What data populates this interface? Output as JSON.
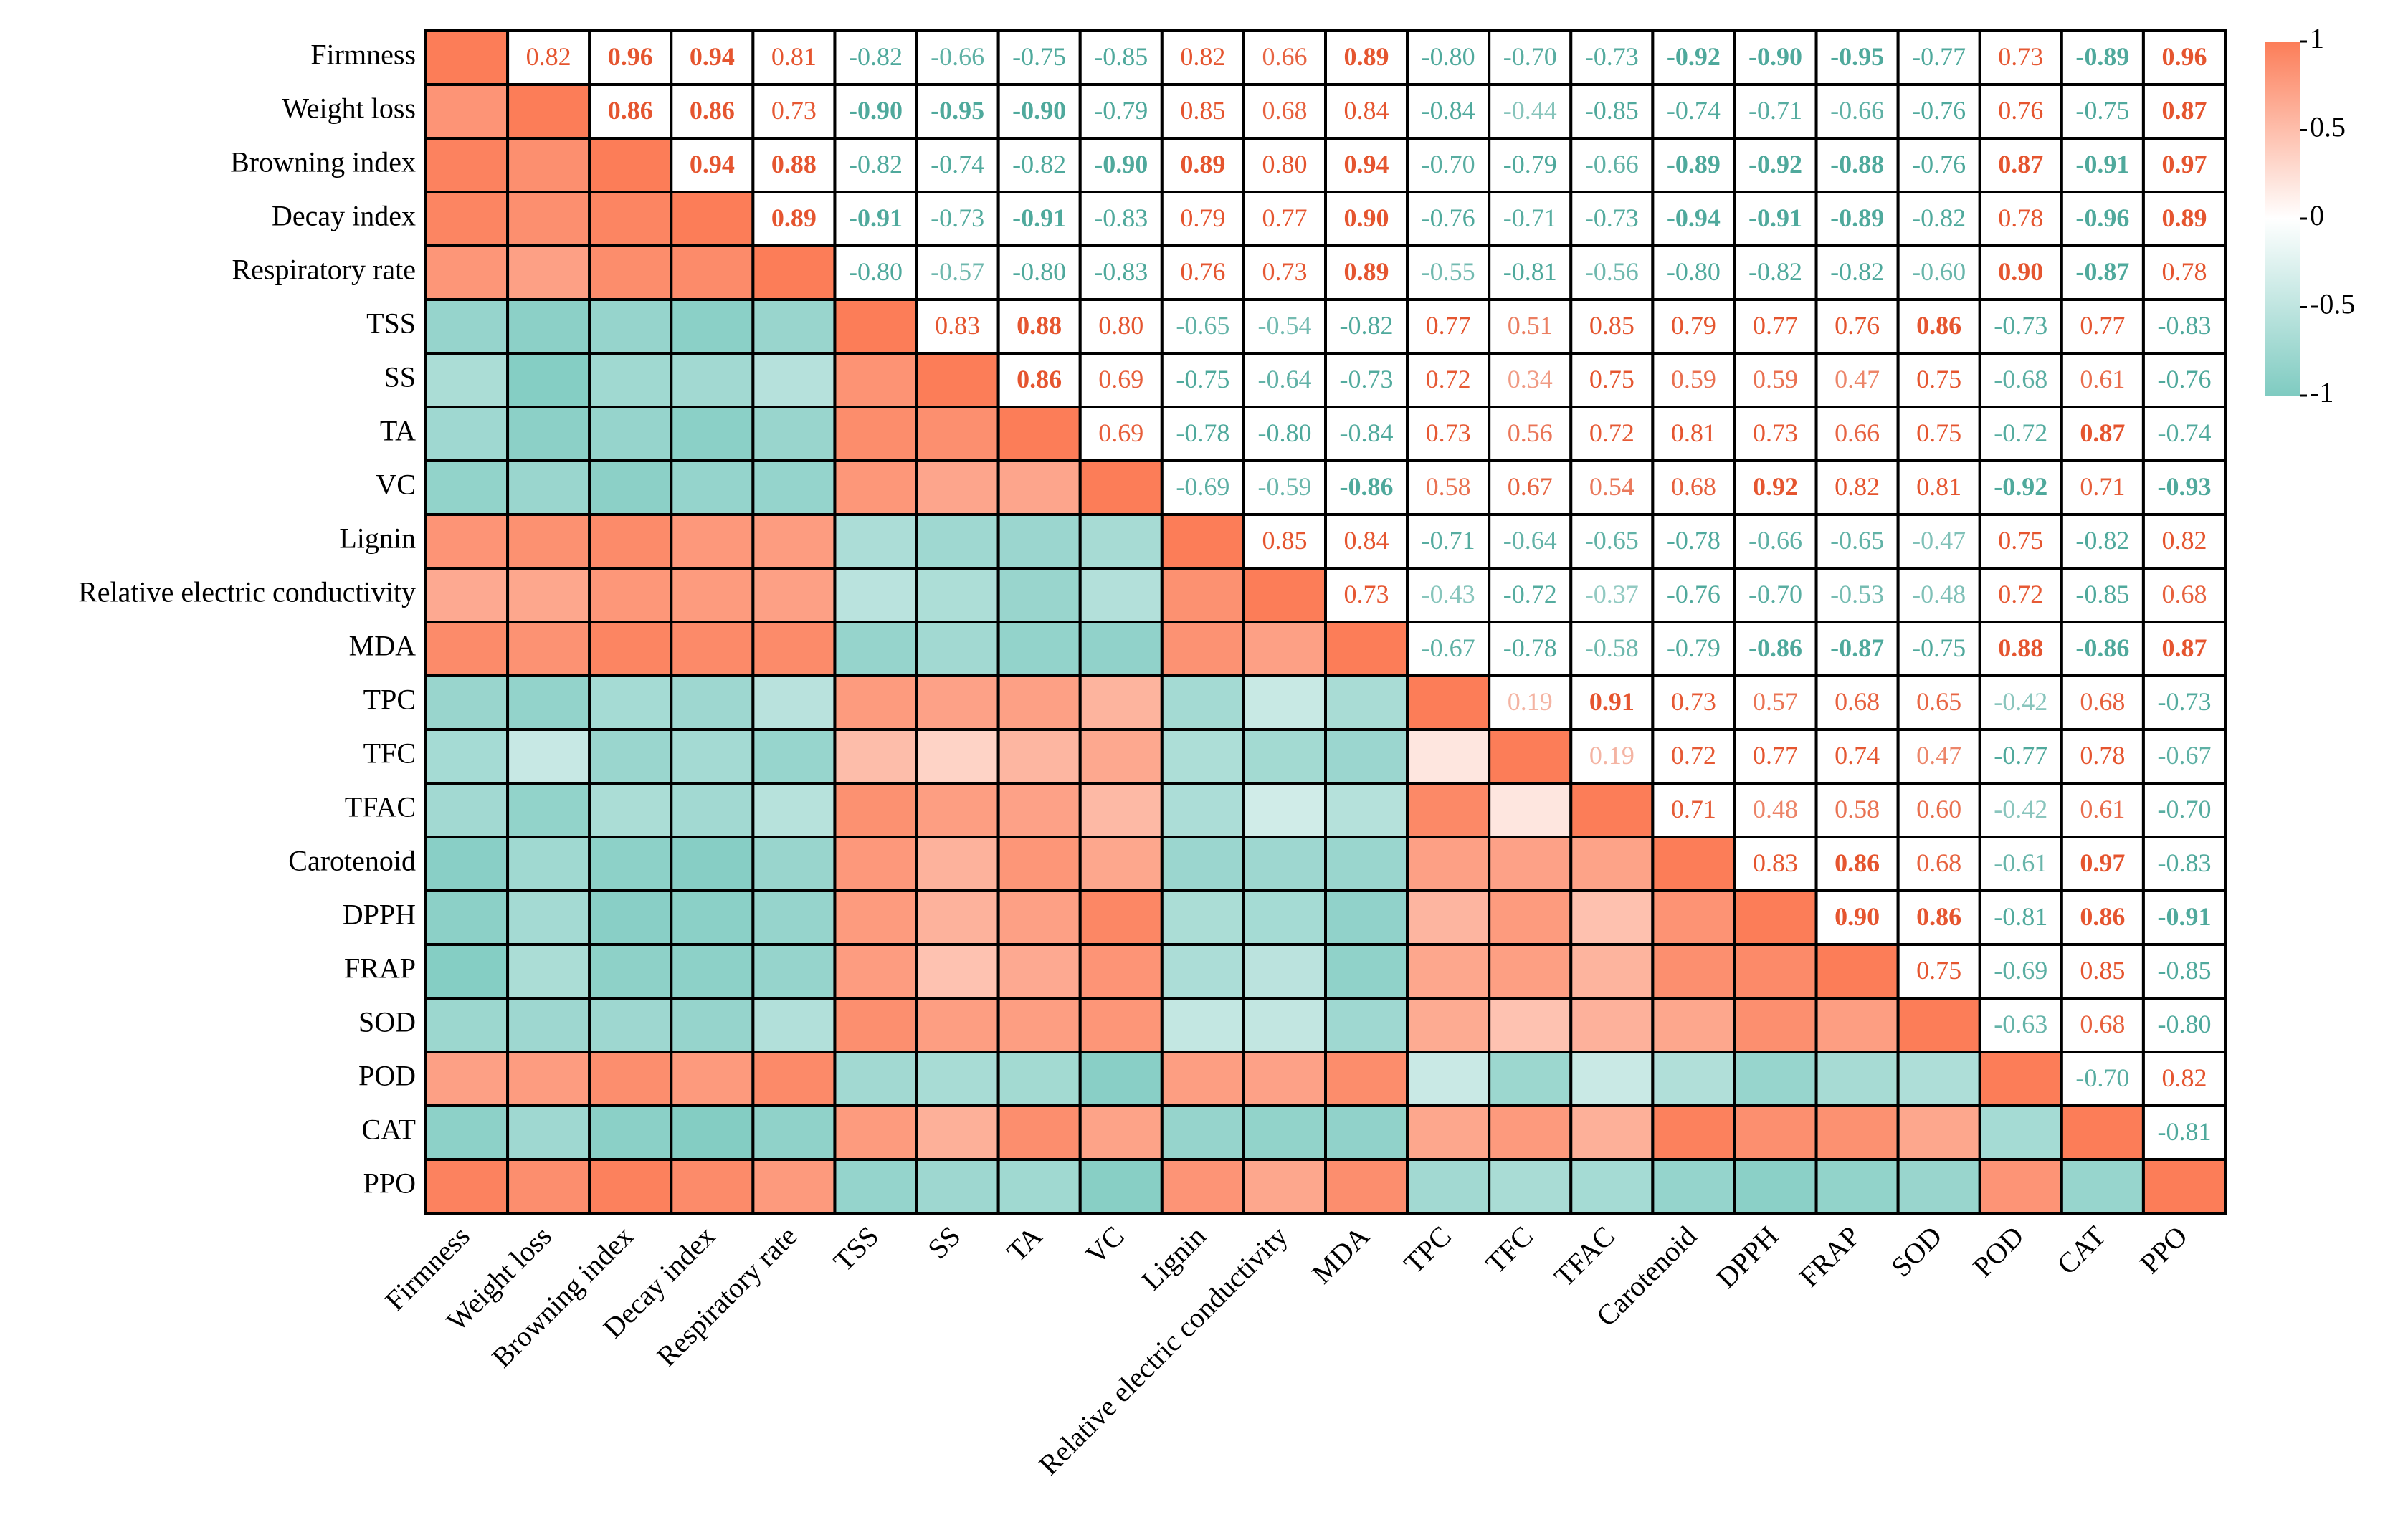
{
  "chart_data": {
    "type": "heatmap",
    "labels": [
      "Firmness",
      "Weight loss",
      "Browning index",
      "Decay index",
      "Respiratory rate",
      "TSS",
      "SS",
      "TA",
      "VC",
      "Lignin",
      "Relative electric conductivity",
      "MDA",
      "TPC",
      "TFC",
      "TFAC",
      "Carotenoid",
      "DPPH",
      "FRAP",
      "SOD",
      "POD",
      "CAT",
      "PPO"
    ],
    "values": [
      [
        1,
        0.82,
        0.96,
        0.94,
        0.81,
        -0.82,
        -0.66,
        -0.75,
        -0.85,
        0.82,
        0.66,
        0.89,
        -0.8,
        -0.7,
        -0.73,
        -0.92,
        -0.9,
        -0.95,
        -0.77,
        0.73,
        -0.89,
        0.96
      ],
      [
        null,
        1,
        0.86,
        0.86,
        0.73,
        -0.9,
        -0.95,
        -0.9,
        -0.79,
        0.85,
        0.68,
        0.84,
        -0.84,
        -0.44,
        -0.85,
        -0.74,
        -0.71,
        -0.66,
        -0.76,
        0.76,
        -0.75,
        0.87
      ],
      [
        null,
        null,
        1,
        0.94,
        0.88,
        -0.82,
        -0.74,
        -0.82,
        -0.9,
        0.89,
        0.8,
        0.94,
        -0.7,
        -0.79,
        -0.66,
        -0.89,
        -0.92,
        -0.88,
        -0.76,
        0.87,
        -0.91,
        0.97
      ],
      [
        null,
        null,
        null,
        1,
        0.89,
        -0.91,
        -0.73,
        -0.91,
        -0.83,
        0.79,
        0.77,
        0.9,
        -0.76,
        -0.71,
        -0.73,
        -0.94,
        -0.91,
        -0.89,
        -0.82,
        0.78,
        -0.96,
        0.89
      ],
      [
        null,
        null,
        null,
        null,
        1,
        -0.8,
        -0.57,
        -0.8,
        -0.83,
        0.76,
        0.73,
        0.89,
        -0.55,
        -0.81,
        -0.56,
        -0.8,
        -0.82,
        -0.82,
        -0.6,
        0.9,
        -0.87,
        0.78
      ],
      [
        null,
        null,
        null,
        null,
        null,
        1,
        0.83,
        0.88,
        0.8,
        -0.65,
        -0.54,
        -0.82,
        0.77,
        0.51,
        0.85,
        0.79,
        0.77,
        0.76,
        0.86,
        -0.73,
        0.77,
        -0.83
      ],
      [
        null,
        null,
        null,
        null,
        null,
        null,
        1,
        0.86,
        0.69,
        -0.75,
        -0.64,
        -0.73,
        0.72,
        0.34,
        0.75,
        0.59,
        0.59,
        0.47,
        0.75,
        -0.68,
        0.61,
        -0.76
      ],
      [
        null,
        null,
        null,
        null,
        null,
        null,
        null,
        1,
        0.69,
        -0.78,
        -0.8,
        -0.84,
        0.73,
        0.56,
        0.72,
        0.81,
        0.73,
        0.66,
        0.75,
        -0.72,
        0.87,
        -0.74
      ],
      [
        null,
        null,
        null,
        null,
        null,
        null,
        null,
        null,
        1,
        -0.69,
        -0.59,
        -0.86,
        0.58,
        0.67,
        0.54,
        0.68,
        0.92,
        0.82,
        0.81,
        -0.92,
        0.71,
        -0.93
      ],
      [
        null,
        null,
        null,
        null,
        null,
        null,
        null,
        null,
        null,
        1,
        0.85,
        0.84,
        -0.71,
        -0.64,
        -0.65,
        -0.78,
        -0.66,
        -0.65,
        -0.47,
        0.75,
        -0.82,
        0.82
      ],
      [
        null,
        null,
        null,
        null,
        null,
        null,
        null,
        null,
        null,
        null,
        1,
        0.73,
        -0.43,
        -0.72,
        -0.37,
        -0.76,
        -0.7,
        -0.53,
        -0.48,
        0.72,
        -0.85,
        0.68
      ],
      [
        null,
        null,
        null,
        null,
        null,
        null,
        null,
        null,
        null,
        null,
        null,
        1,
        -0.67,
        -0.78,
        -0.58,
        -0.79,
        -0.86,
        -0.87,
        -0.75,
        0.88,
        -0.86,
        0.87
      ],
      [
        null,
        null,
        null,
        null,
        null,
        null,
        null,
        null,
        null,
        null,
        null,
        null,
        1,
        0.19,
        0.91,
        0.73,
        0.57,
        0.68,
        0.65,
        -0.42,
        0.68,
        -0.73
      ],
      [
        null,
        null,
        null,
        null,
        null,
        null,
        null,
        null,
        null,
        null,
        null,
        null,
        null,
        1,
        0.19,
        0.72,
        0.77,
        0.74,
        0.47,
        -0.77,
        0.78,
        -0.67
      ],
      [
        null,
        null,
        null,
        null,
        null,
        null,
        null,
        null,
        null,
        null,
        null,
        null,
        null,
        null,
        1,
        0.71,
        0.48,
        0.58,
        0.6,
        -0.42,
        0.61,
        -0.7
      ],
      [
        null,
        null,
        null,
        null,
        null,
        null,
        null,
        null,
        null,
        null,
        null,
        null,
        null,
        null,
        null,
        1,
        0.83,
        0.86,
        0.68,
        -0.61,
        0.97,
        -0.83
      ],
      [
        null,
        null,
        null,
        null,
        null,
        null,
        null,
        null,
        null,
        null,
        null,
        null,
        null,
        null,
        null,
        null,
        1,
        0.9,
        0.86,
        -0.81,
        0.86,
        -0.91
      ],
      [
        null,
        null,
        null,
        null,
        null,
        null,
        null,
        null,
        null,
        null,
        null,
        null,
        null,
        null,
        null,
        null,
        null,
        1,
        0.75,
        -0.69,
        0.85,
        -0.85
      ],
      [
        null,
        null,
        null,
        null,
        null,
        null,
        null,
        null,
        null,
        null,
        null,
        null,
        null,
        null,
        null,
        null,
        null,
        null,
        1,
        -0.63,
        0.68,
        -0.8
      ],
      [
        null,
        null,
        null,
        null,
        null,
        null,
        null,
        null,
        null,
        null,
        null,
        null,
        null,
        null,
        null,
        null,
        null,
        null,
        null,
        1,
        -0.7,
        0.82
      ],
      [
        null,
        null,
        null,
        null,
        null,
        null,
        null,
        null,
        null,
        null,
        null,
        null,
        null,
        null,
        null,
        null,
        null,
        null,
        null,
        null,
        1,
        -0.81
      ],
      [
        null,
        null,
        null,
        null,
        null,
        null,
        null,
        null,
        null,
        null,
        null,
        null,
        null,
        null,
        null,
        null,
        null,
        null,
        null,
        null,
        null,
        1
      ]
    ],
    "value_labels": [
      [
        null,
        "0.82",
        "0.96",
        "0.94",
        "0.81",
        "-0.82",
        "-0.66",
        "-0.75",
        "-0.85",
        "0.82",
        "0.66",
        "0.89",
        "-0.80",
        "-0.70",
        "-0.73",
        "-0.92",
        "-0.90",
        "-0.95",
        "-0.77",
        "0.73",
        "-0.89",
        "0.96"
      ],
      [
        null,
        null,
        "0.86",
        "0.86",
        "0.73",
        "-0.90",
        "-0.95",
        "-0.90",
        "-0.79",
        "0.85",
        "0.68",
        "0.84",
        "-0.84",
        "-0.44",
        "-0.85",
        "-0.74",
        "-0.71",
        "-0.66",
        "-0.76",
        "0.76",
        "-0.75",
        "0.87"
      ],
      [
        null,
        null,
        null,
        "0.94",
        "0.88",
        "-0.82",
        "-0.74",
        "-0.82",
        "-0.90",
        "0.89",
        "0.80",
        "0.94",
        "-0.70",
        "-0.79",
        "-0.66",
        "-0.89",
        "-0.92",
        "-0.88",
        "-0.76",
        "0.87",
        "-0.91",
        "0.97"
      ],
      [
        null,
        null,
        null,
        null,
        "0.89",
        "-0.91",
        "-0.73",
        "-0.91",
        "-0.83",
        "0.79",
        "0.77",
        "0.90",
        "-0.76",
        "-0.71",
        "-0.73",
        "-0.94",
        "-0.91",
        "-0.89",
        "-0.82",
        "0.78",
        "-0.96",
        "0.89"
      ],
      [
        null,
        null,
        null,
        null,
        null,
        "-0.80",
        "-0.57",
        "-0.80",
        "-0.83",
        "0.76",
        "0.73",
        "0.89",
        "-0.55",
        "-0.81",
        "-0.56",
        "-0.80",
        "-0.82",
        "-0.82",
        "-0.60",
        "0.90",
        "-0.87",
        "0.78"
      ],
      [
        null,
        null,
        null,
        null,
        null,
        null,
        "0.83",
        "0.88",
        "0.80",
        "-0.65",
        "-0.54",
        "-0.82",
        "0.77",
        "0.51",
        "0.85",
        "0.79",
        "0.77",
        "0.76",
        "0.86",
        "-0.73",
        "0.77",
        "-0.83"
      ],
      [
        null,
        null,
        null,
        null,
        null,
        null,
        null,
        "0.86",
        "0.69",
        "-0.75",
        "-0.64",
        "-0.73",
        "0.72",
        "0.34",
        "0.75",
        "0.59",
        "0.59",
        "0.47",
        "0.75",
        "-0.68",
        "0.61",
        "-0.76"
      ],
      [
        null,
        null,
        null,
        null,
        null,
        null,
        null,
        null,
        "0.69",
        "-0.78",
        "-0.80",
        "-0.84",
        "0.73",
        "0.56",
        "0.72",
        "0.81",
        "0.73",
        "0.66",
        "0.75",
        "-0.72",
        "0.87",
        "-0.74"
      ],
      [
        null,
        null,
        null,
        null,
        null,
        null,
        null,
        null,
        null,
        "-0.69",
        "-0.59",
        "-0.86",
        "0.58",
        "0.67",
        "0.54",
        "0.68",
        "0.92",
        "0.82",
        "0.81",
        "-0.92",
        "0.71",
        "-0.93"
      ],
      [
        null,
        null,
        null,
        null,
        null,
        null,
        null,
        null,
        null,
        null,
        "0.85",
        "0.84",
        "-0.71",
        "-0.64",
        "-0.65",
        "-0.78",
        "-0.66",
        "-0.65",
        "-0.47",
        "0.75",
        "-0.82",
        "0.82"
      ],
      [
        null,
        null,
        null,
        null,
        null,
        null,
        null,
        null,
        null,
        null,
        null,
        "0.73",
        "-0.43",
        "-0.72",
        "-0.37",
        "-0.76",
        "-0.70",
        "-0.53",
        "-0.48",
        "0.72",
        "-0.85",
        "0.68"
      ],
      [
        null,
        null,
        null,
        null,
        null,
        null,
        null,
        null,
        null,
        null,
        null,
        null,
        "-0.67",
        "-0.78",
        "-0.58",
        "-0.79",
        "-0.86",
        "-0.87",
        "-0.75",
        "0.88",
        "-0.86",
        "0.87"
      ],
      [
        null,
        null,
        null,
        null,
        null,
        null,
        null,
        null,
        null,
        null,
        null,
        null,
        null,
        "0.19",
        "0.91",
        "0.73",
        "0.57",
        "0.68",
        "0.65",
        "-0.42",
        "0.68",
        "-0.73"
      ],
      [
        null,
        null,
        null,
        null,
        null,
        null,
        null,
        null,
        null,
        null,
        null,
        null,
        null,
        null,
        "0.19",
        "0.72",
        "0.77",
        "0.74",
        "0.47",
        "-0.77",
        "0.78",
        "-0.67"
      ],
      [
        null,
        null,
        null,
        null,
        null,
        null,
        null,
        null,
        null,
        null,
        null,
        null,
        null,
        null,
        null,
        "0.71",
        "0.48",
        "0.58",
        "0.60",
        "-0.42",
        "0.61",
        "-0.70"
      ],
      [
        null,
        null,
        null,
        null,
        null,
        null,
        null,
        null,
        null,
        null,
        null,
        null,
        null,
        null,
        null,
        null,
        "0.83",
        "0.86",
        "0.68",
        "-0.61",
        "0.97",
        "-0.83"
      ],
      [
        null,
        null,
        null,
        null,
        null,
        null,
        null,
        null,
        null,
        null,
        null,
        null,
        null,
        null,
        null,
        null,
        null,
        "0.90",
        "0.86",
        "-0.81",
        "0.86",
        "-0.91"
      ],
      [
        null,
        null,
        null,
        null,
        null,
        null,
        null,
        null,
        null,
        null,
        null,
        null,
        null,
        null,
        null,
        null,
        null,
        null,
        "0.75",
        "-0.69",
        "0.85",
        "-0.85"
      ],
      [
        null,
        null,
        null,
        null,
        null,
        null,
        null,
        null,
        null,
        null,
        null,
        null,
        null,
        null,
        null,
        null,
        null,
        null,
        null,
        "-0.63",
        "0.68",
        "-0.80"
      ],
      [
        null,
        null,
        null,
        null,
        null,
        null,
        null,
        null,
        null,
        null,
        null,
        null,
        null,
        null,
        null,
        null,
        null,
        null,
        null,
        null,
        "-0.70",
        "0.82"
      ],
      [
        null,
        null,
        null,
        null,
        null,
        null,
        null,
        null,
        null,
        null,
        null,
        null,
        null,
        null,
        null,
        null,
        null,
        null,
        null,
        null,
        null,
        "-0.81"
      ],
      [
        null,
        null,
        null,
        null,
        null,
        null,
        null,
        null,
        null,
        null,
        null,
        null,
        null,
        null,
        null,
        null,
        null,
        null,
        null,
        null,
        null,
        null
      ]
    ],
    "colors": [
      "#7fcbc1",
      "#ffffff",
      "#fc7d58"
    ],
    "label_colors": [
      "#4fa99c",
      "#e5552f"
    ],
    "clim": [
      -1,
      1
    ],
    "cticks": [
      -1,
      -0.5,
      0,
      0.5,
      1
    ]
  }
}
